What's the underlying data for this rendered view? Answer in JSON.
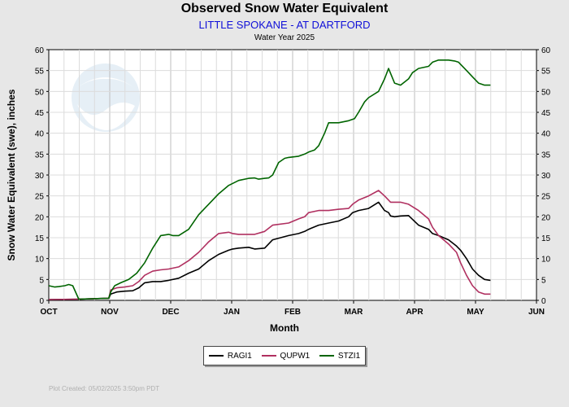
{
  "chart_data": {
    "type": "line",
    "title": "Observed Snow Water Equivalent",
    "subtitle": "LITTLE SPOKANE - AT DARTFORD",
    "subtitle2": "Water Year 2025",
    "xlabel": "Month",
    "ylabel": "Snow Water Equivalent (swe),  inches",
    "ylim": [
      0,
      60
    ],
    "y_ticks": [
      0,
      5,
      10,
      15,
      20,
      25,
      30,
      35,
      40,
      45,
      50,
      55,
      60
    ],
    "x_ticks": [
      "OCT",
      "NOV",
      "DEC",
      "JAN",
      "FEB",
      "MAR",
      "APR",
      "MAY",
      "JUN"
    ],
    "grid": true,
    "legend_position": "bottom-center",
    "series": [
      {
        "name": "RAGI1",
        "color": "#000000",
        "x": [
          0,
          15,
          30,
          31,
          34,
          38,
          42,
          45,
          48,
          52,
          56,
          60,
          65,
          70,
          75,
          80,
          85,
          90,
          92,
          95,
          100,
          103,
          108,
          112,
          120,
          125,
          128,
          130,
          135,
          140,
          145,
          150,
          152,
          155,
          160,
          165,
          168,
          170,
          171,
          173,
          176,
          180,
          185,
          190,
          192,
          195,
          200,
          204,
          206,
          209,
          212,
          215,
          218,
          221
        ],
        "y": [
          0.2,
          0.3,
          0.5,
          1.5,
          2.0,
          2.2,
          2.3,
          3.0,
          4.2,
          4.5,
          4.5,
          4.8,
          5.3,
          6.5,
          7.5,
          9.5,
          11.0,
          12.0,
          12.3,
          12.5,
          12.7,
          12.3,
          12.5,
          14.5,
          15.5,
          16.0,
          16.5,
          17.0,
          18.0,
          18.5,
          19.0,
          20.0,
          21.0,
          21.5,
          22.0,
          23.5,
          21.5,
          21.0,
          20.2,
          20.0,
          20.2,
          20.3,
          18.0,
          17.0,
          16.0,
          15.5,
          14.5,
          13.0,
          12.0,
          10.0,
          7.5,
          6.0,
          5.0,
          4.8
        ]
      },
      {
        "name": "QUPW1",
        "color": "#b03060",
        "x": [
          0,
          15,
          30,
          31,
          34,
          38,
          42,
          45,
          48,
          52,
          56,
          60,
          65,
          70,
          75,
          80,
          85,
          90,
          92,
          95,
          100,
          103,
          108,
          112,
          120,
          125,
          128,
          130,
          135,
          140,
          145,
          150,
          152,
          155,
          160,
          165,
          168,
          170,
          171,
          173,
          176,
          180,
          185,
          190,
          192,
          195,
          200,
          204,
          206,
          209,
          212,
          215,
          218,
          221
        ],
        "y": [
          0.2,
          0.3,
          0.5,
          2.5,
          3.0,
          3.2,
          3.5,
          4.5,
          6.0,
          7.0,
          7.3,
          7.5,
          8.0,
          9.5,
          11.5,
          14.0,
          16.0,
          16.3,
          16.0,
          15.8,
          15.8,
          15.8,
          16.5,
          18.0,
          18.5,
          19.5,
          20.0,
          21.0,
          21.5,
          21.5,
          21.8,
          22.0,
          23.0,
          24.0,
          25.0,
          26.3,
          25.0,
          24.0,
          23.5,
          23.5,
          23.5,
          23.0,
          21.5,
          19.5,
          17.5,
          15.5,
          13.5,
          11.5,
          9.0,
          6.0,
          3.5,
          2.0,
          1.5,
          1.5
        ]
      },
      {
        "name": "STZI1",
        "color": "#006400",
        "x": [
          0,
          3,
          5,
          8,
          10,
          12,
          15,
          30,
          31,
          33,
          36,
          40,
          44,
          48,
          52,
          56,
          60,
          62,
          65,
          70,
          75,
          80,
          85,
          90,
          95,
          100,
          103,
          105,
          108,
          110,
          112,
          115,
          118,
          120,
          125,
          128,
          130,
          133,
          135,
          138,
          140,
          145,
          150,
          153,
          155,
          158,
          160,
          165,
          168,
          170,
          173,
          176,
          180,
          182,
          185,
          190,
          192,
          195,
          200,
          203,
          205,
          208,
          210,
          212,
          215,
          218,
          221
        ],
        "y": [
          3.5,
          3.2,
          3.3,
          3.5,
          3.8,
          3.5,
          0.3,
          0.5,
          2.0,
          3.5,
          4.2,
          5.0,
          6.5,
          9.0,
          12.5,
          15.5,
          15.8,
          15.5,
          15.5,
          17.0,
          20.5,
          23.0,
          25.5,
          27.5,
          28.7,
          29.2,
          29.3,
          29.0,
          29.2,
          29.3,
          30.0,
          33.0,
          34.0,
          34.2,
          34.5,
          35.0,
          35.5,
          36.0,
          37.0,
          40.0,
          42.5,
          42.5,
          43.0,
          43.5,
          45.0,
          47.5,
          48.5,
          50.0,
          53.0,
          55.5,
          52.0,
          51.5,
          53.0,
          54.5,
          55.5,
          56.0,
          57.0,
          57.5,
          57.5,
          57.3,
          57.0,
          55.5,
          54.5,
          53.5,
          52.0,
          51.5,
          51.5
        ]
      }
    ]
  },
  "footer": "Plot Created: 05/02/2025 3:50pm PDT"
}
